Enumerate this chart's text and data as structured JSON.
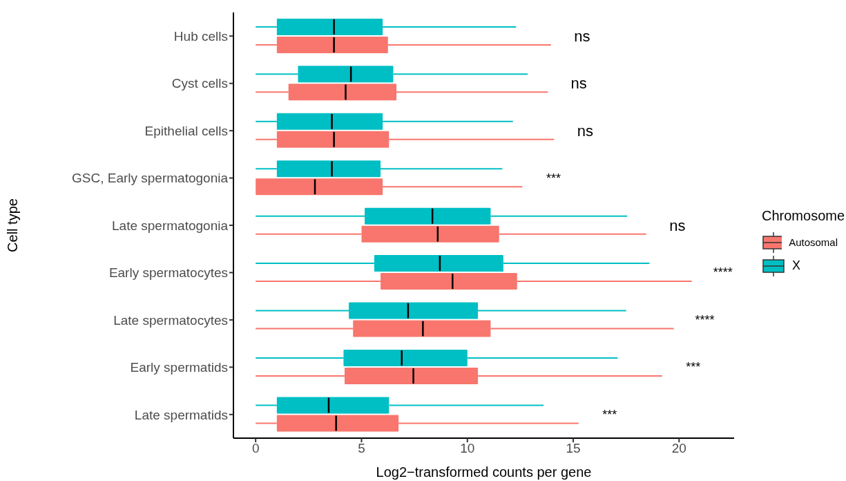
{
  "chart_data": {
    "type": "box",
    "orientation": "horizontal",
    "xlabel": "Log2−transformed counts per gene",
    "ylabel": "Cell type",
    "legend_title": "Chromosome",
    "legend": "right",
    "grid": false,
    "categories": [
      "Hub cells",
      "Cyst cells",
      "Epithelial cells",
      "GSC, Early spermatogonia",
      "Late spermatogonia",
      "Early spermatocytes",
      "Late spermatocytes",
      "Early spermatids",
      "Late spermatids"
    ],
    "xlim": [
      -1.05,
      22.6
    ],
    "xticks": [
      0,
      5,
      10,
      15,
      20
    ],
    "series": [
      {
        "name": "Autosomal",
        "color": "#f8766d",
        "boxes": [
          {
            "low": 0,
            "q1": 1.0,
            "median": 3.7,
            "q3": 6.25,
            "high": 13.95
          },
          {
            "low": 0,
            "q1": 1.55,
            "median": 4.25,
            "q3": 6.65,
            "high": 13.8
          },
          {
            "low": 0,
            "q1": 1.0,
            "median": 3.7,
            "q3": 6.3,
            "high": 14.1
          },
          {
            "low": 0,
            "q1": 0,
            "median": 2.8,
            "q3": 6.0,
            "high": 12.6
          },
          {
            "low": 0,
            "q1": 5.0,
            "median": 8.6,
            "q3": 11.5,
            "high": 18.45
          },
          {
            "low": 0,
            "q1": 5.9,
            "median": 9.3,
            "q3": 12.35,
            "high": 20.6
          },
          {
            "low": 0,
            "q1": 4.6,
            "median": 7.9,
            "q3": 11.1,
            "high": 19.75
          },
          {
            "low": 0,
            "q1": 4.2,
            "median": 7.45,
            "q3": 10.5,
            "high": 19.2
          },
          {
            "low": 0,
            "q1": 1.0,
            "median": 3.8,
            "q3": 6.75,
            "high": 15.25
          }
        ]
      },
      {
        "name": "X",
        "color": "#00bfc4",
        "boxes": [
          {
            "low": 0,
            "q1": 1.0,
            "median": 3.7,
            "q3": 6.0,
            "high": 12.3
          },
          {
            "low": 0,
            "q1": 2.0,
            "median": 4.5,
            "q3": 6.5,
            "high": 12.85
          },
          {
            "low": 0,
            "q1": 1.0,
            "median": 3.6,
            "q3": 6.0,
            "high": 12.15
          },
          {
            "low": 0,
            "q1": 1.0,
            "median": 3.6,
            "q3": 5.9,
            "high": 11.65
          },
          {
            "low": 0,
            "q1": 5.15,
            "median": 8.35,
            "q3": 11.1,
            "high": 17.55
          },
          {
            "low": 0,
            "q1": 5.6,
            "median": 8.7,
            "q3": 11.7,
            "high": 18.6
          },
          {
            "low": 0,
            "q1": 4.4,
            "median": 7.2,
            "q3": 10.5,
            "high": 17.5
          },
          {
            "low": 0,
            "q1": 4.15,
            "median": 6.9,
            "q3": 10.0,
            "high": 17.1
          },
          {
            "low": 0,
            "q1": 1.0,
            "median": 3.45,
            "q3": 6.3,
            "high": 13.6
          }
        ]
      }
    ],
    "annotations": [
      "ns",
      "ns",
      "ns",
      "***",
      "ns",
      "****",
      "****",
      "***",
      "***"
    ]
  }
}
